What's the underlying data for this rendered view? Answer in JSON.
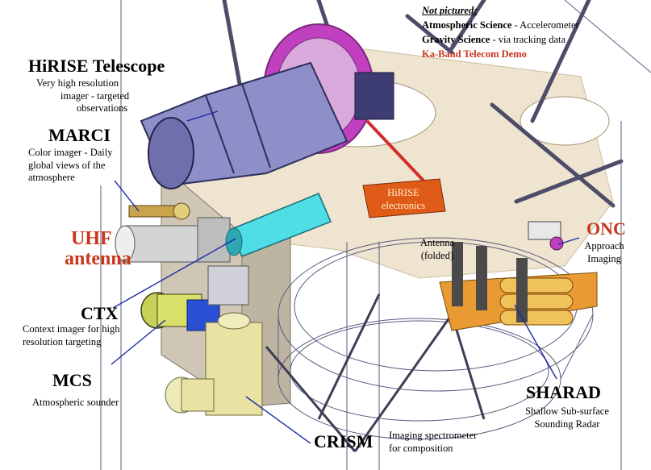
{
  "not_pictured": {
    "header": "Not pictured:",
    "items": [
      {
        "name": "Atmospheric Science",
        "desc": " - Accelerometer"
      },
      {
        "name": "Gravity Science",
        "desc": " - via tracking data"
      }
    ],
    "ka_band": "Ka-Band Telecom Demo"
  },
  "instruments": {
    "hirise": {
      "name": "HiRISE Telescope",
      "desc_lines": [
        "Very high resolution",
        "imager - targeted",
        "observations"
      ]
    },
    "marci": {
      "name": "MARCI",
      "desc_lines": [
        "Color imager - Daily",
        "global views of the",
        "atmosphere"
      ]
    },
    "uhf": {
      "name_lines": [
        "UHF",
        "antenna"
      ]
    },
    "ctx": {
      "name": "CTX",
      "desc_lines": [
        "Context imager for high",
        "resolution targeting"
      ]
    },
    "mcs": {
      "name": "MCS",
      "desc_lines": [
        "Atmospheric sounder"
      ]
    },
    "crism": {
      "name": "CRISM",
      "desc_lines": [
        "Imaging spectrometer",
        "for composition"
      ]
    },
    "sharad": {
      "name": "SHARAD",
      "desc_lines": [
        "Shallow Sub-surface",
        "Sounding Radar"
      ]
    },
    "onc": {
      "name": "ONC",
      "desc_lines": [
        "Approach",
        "Imaging"
      ]
    },
    "hirise_electronics": {
      "lines": [
        "HiRISE",
        "electronics"
      ]
    },
    "antenna_folded": {
      "lines": [
        "Antenna",
        "(folded)"
      ]
    }
  },
  "colors": {
    "label_red": "#c8361b",
    "callout_blue": "#1a2aa8",
    "deck_tan": "#e9dcc0",
    "telescope": "#8e8ec8",
    "magenta": "#c040c0",
    "ctx_cyan": "#4fdde6",
    "crism_yellow": "#e8e3a2",
    "sharad_orange": "#e99a33",
    "electronics_orange": "#e05a18"
  }
}
